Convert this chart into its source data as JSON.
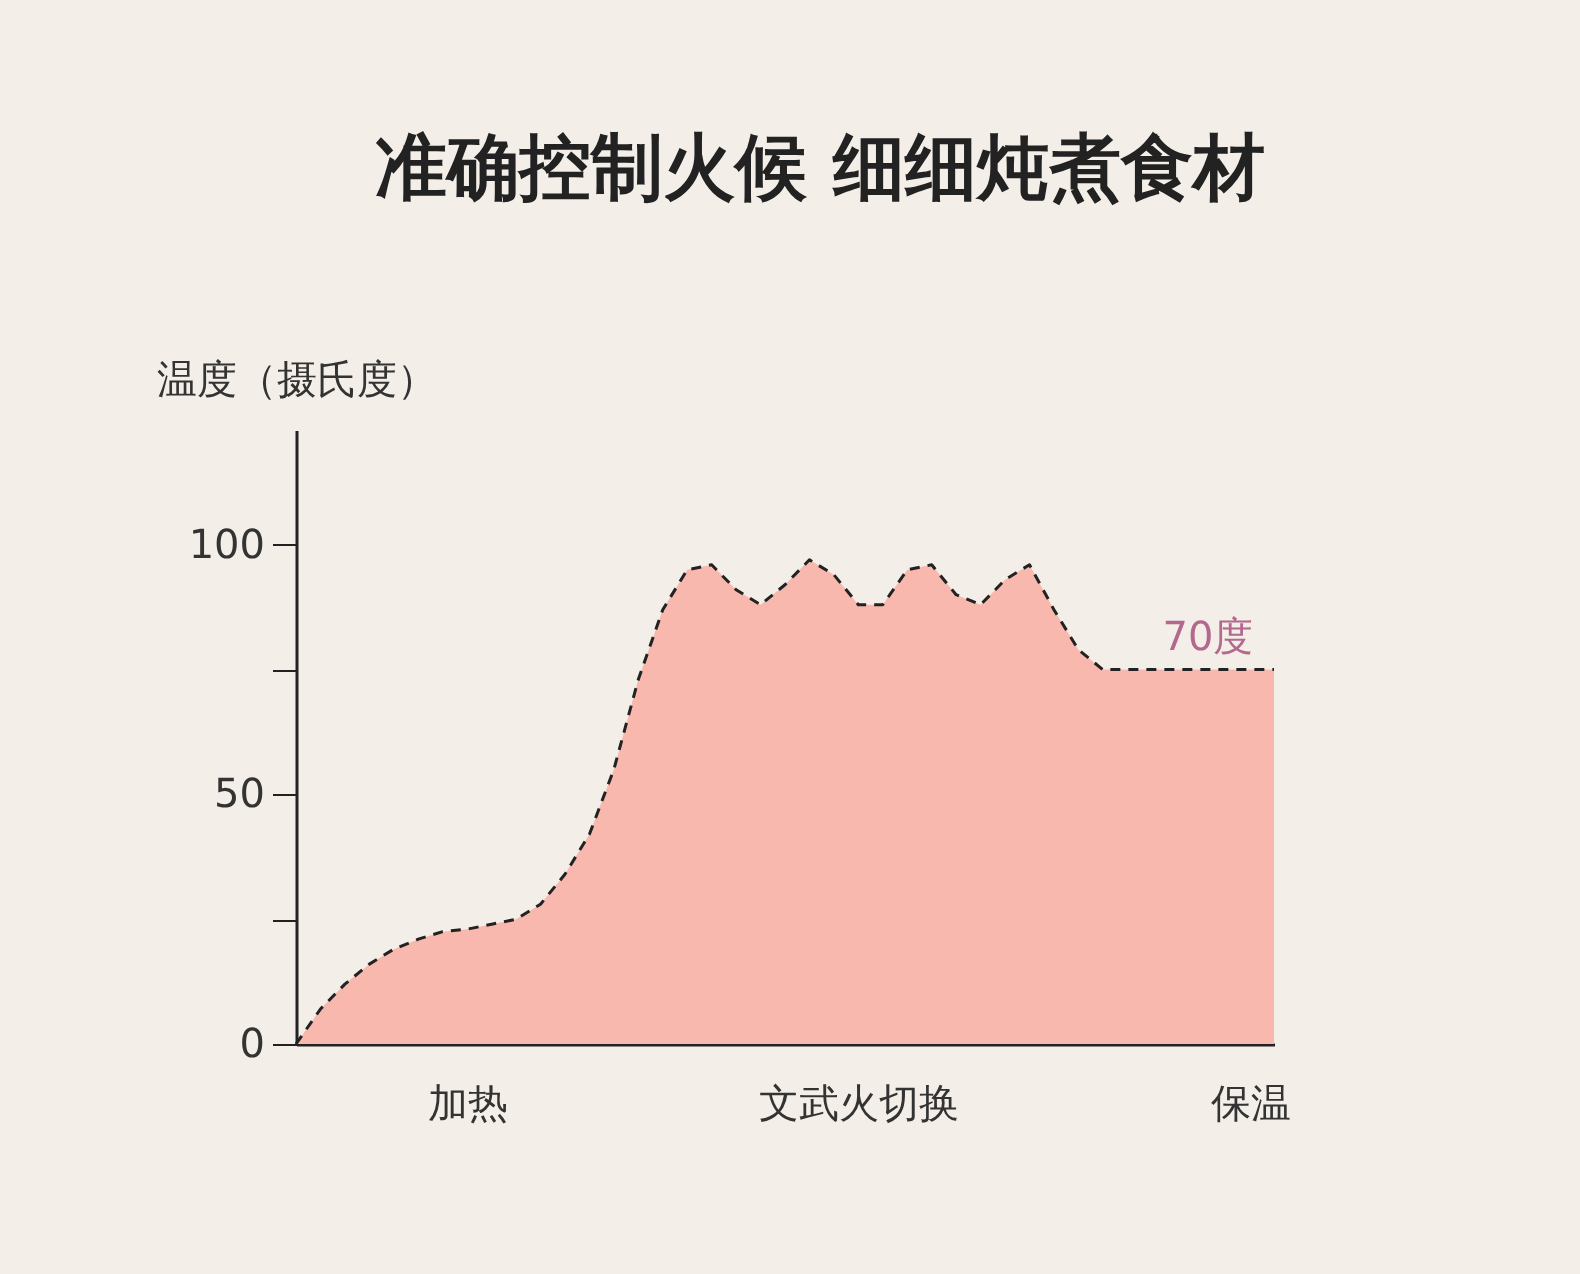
{
  "chart_data": {
    "type": "area",
    "title": "准确控制火候  细细炖煮食材",
    "ylabel": "温度（摄氏度）",
    "categories": [
      null,
      null,
      null,
      null,
      null,
      null,
      null,
      "加热",
      null,
      null,
      null,
      null,
      null,
      null,
      null,
      null,
      null,
      null,
      null,
      null,
      null,
      null,
      null,
      "文武火切换",
      null,
      null,
      null,
      null,
      null,
      null,
      null,
      null,
      null,
      null,
      null,
      null,
      null,
      null,
      null,
      "保温",
      null
    ],
    "series": [
      {
        "color": "#f9b8ad",
        "values": [
          0,
          7,
          12,
          16,
          19,
          21,
          22.5,
          23,
          24,
          25,
          28,
          34,
          42,
          55,
          73,
          87,
          95,
          96,
          91,
          88,
          92,
          97,
          94,
          88,
          88,
          95,
          96,
          90,
          88,
          93,
          96,
          87,
          79,
          75,
          75,
          75,
          75,
          75,
          75,
          75,
          75
        ]
      }
    ],
    "ylim": [
      0,
      123
    ],
    "yticks": [
      0,
      {
        "value": 25,
        "label": null
      },
      50,
      {
        "value": 75,
        "label": null
      },
      100
    ],
    "annotations": [
      {
        "text": "70度",
        "y": 75
      }
    ],
    "grid": false,
    "line_style": "dashed"
  }
}
